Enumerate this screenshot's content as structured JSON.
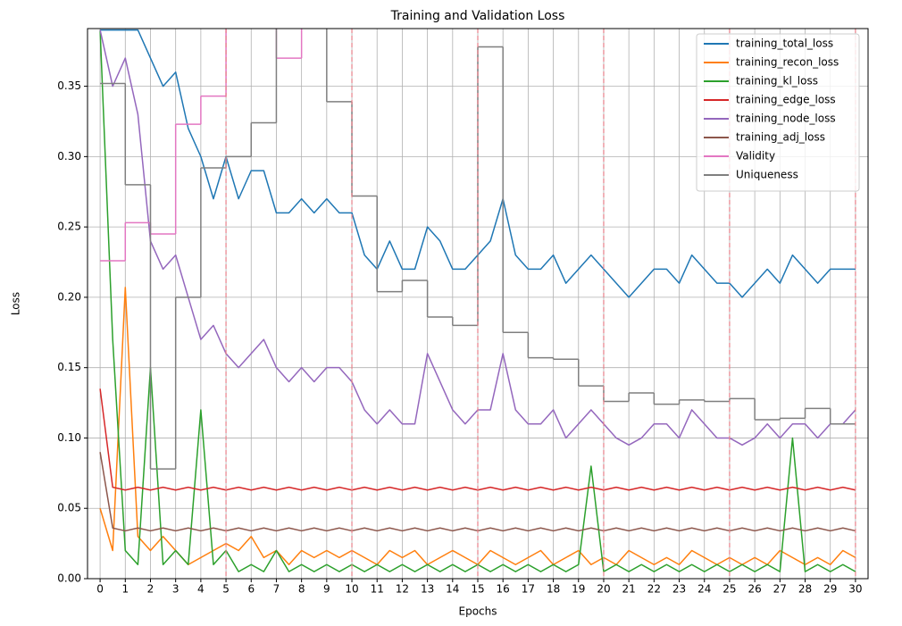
{
  "chart_data": {
    "type": "line",
    "title": "Training and Validation Loss",
    "x_label": "Epochs",
    "y_label": "Loss",
    "xlim": [
      -0.5,
      30.5
    ],
    "ylim": [
      0,
      0.391
    ],
    "xticks": [
      0,
      1,
      2,
      3,
      4,
      5,
      6,
      7,
      8,
      9,
      10,
      11,
      12,
      13,
      14,
      15,
      16,
      17,
      18,
      19,
      20,
      21,
      22,
      23,
      24,
      25,
      26,
      27,
      28,
      29,
      30
    ],
    "yticks": [
      {
        "value": 0,
        "label": "0.00"
      },
      0.05,
      {
        "value": 0.1,
        "label": "0.10"
      },
      0.15,
      {
        "value": 0.2,
        "label": "0.20"
      },
      0.25,
      {
        "value": 0.3,
        "label": "0.30"
      },
      0.35
    ],
    "grid": true,
    "legend": "upper right",
    "vlines": [
      5,
      10,
      15,
      20,
      25,
      30
    ],
    "vline_color": "#e8808a",
    "x": [
      0,
      0.5,
      1,
      1.5,
      2,
      2.5,
      3,
      3.5,
      4,
      4.5,
      5,
      5.5,
      6,
      6.5,
      7,
      7.5,
      8,
      8.5,
      9,
      9.5,
      10,
      10.5,
      11,
      11.5,
      12,
      12.5,
      13,
      13.5,
      14,
      14.5,
      15,
      15.5,
      16,
      16.5,
      17,
      17.5,
      18,
      18.5,
      19,
      19.5,
      20,
      20.5,
      21,
      21.5,
      22,
      22.5,
      23,
      23.5,
      24,
      24.5,
      25,
      25.5,
      26,
      26.5,
      27,
      27.5,
      28,
      28.5,
      29,
      29.5,
      30
    ],
    "series": [
      {
        "name": "training_total_loss",
        "color": "#1f77b4",
        "values": [
          0.39,
          0.39,
          0.39,
          0.39,
          0.37,
          0.35,
          0.36,
          0.32,
          0.3,
          0.27,
          0.3,
          0.27,
          0.29,
          0.29,
          0.26,
          0.26,
          0.27,
          0.26,
          0.27,
          0.26,
          0.26,
          0.23,
          0.22,
          0.24,
          0.22,
          0.22,
          0.25,
          0.24,
          0.22,
          0.22,
          0.23,
          0.24,
          0.27,
          0.23,
          0.22,
          0.22,
          0.23,
          0.21,
          0.22,
          0.23,
          0.22,
          0.21,
          0.2,
          0.21,
          0.22,
          0.22,
          0.21,
          0.23,
          0.22,
          0.21,
          0.21,
          0.2,
          0.21,
          0.22,
          0.21,
          0.23,
          0.22,
          0.21,
          0.22,
          0.22,
          0.22
        ]
      },
      {
        "name": "training_recon_loss",
        "color": "#ff7f0e",
        "values": [
          0.05,
          0.02,
          0.207,
          0.03,
          0.02,
          0.03,
          0.02,
          0.01,
          0.015,
          0.02,
          0.025,
          0.02,
          0.03,
          0.015,
          0.02,
          0.01,
          0.02,
          0.015,
          0.02,
          0.015,
          0.02,
          0.015,
          0.01,
          0.02,
          0.015,
          0.02,
          0.01,
          0.015,
          0.02,
          0.015,
          0.01,
          0.02,
          0.015,
          0.01,
          0.015,
          0.02,
          0.01,
          0.015,
          0.02,
          0.01,
          0.015,
          0.01,
          0.02,
          0.015,
          0.01,
          0.015,
          0.01,
          0.02,
          0.015,
          0.01,
          0.015,
          0.01,
          0.015,
          0.01,
          0.02,
          0.015,
          0.01,
          0.015,
          0.01,
          0.02,
          0.015
        ]
      },
      {
        "name": "training_kl_loss",
        "color": "#2ca02c",
        "values": [
          0.39,
          0.17,
          0.02,
          0.01,
          0.15,
          0.01,
          0.02,
          0.01,
          0.12,
          0.01,
          0.02,
          0.005,
          0.01,
          0.005,
          0.02,
          0.005,
          0.01,
          0.005,
          0.01,
          0.005,
          0.01,
          0.005,
          0.01,
          0.005,
          0.01,
          0.005,
          0.01,
          0.005,
          0.01,
          0.005,
          0.01,
          0.005,
          0.01,
          0.005,
          0.01,
          0.005,
          0.01,
          0.005,
          0.01,
          0.08,
          0.005,
          0.01,
          0.005,
          0.01,
          0.005,
          0.01,
          0.005,
          0.01,
          0.005,
          0.01,
          0.005,
          0.01,
          0.005,
          0.01,
          0.005,
          0.1,
          0.005,
          0.01,
          0.005,
          0.01,
          0.005
        ]
      },
      {
        "name": "training_edge_loss",
        "color": "#d62728",
        "values": [
          0.135,
          0.065,
          0.063,
          0.065,
          0.063,
          0.065,
          0.063,
          0.065,
          0.063,
          0.065,
          0.063,
          0.065,
          0.063,
          0.065,
          0.063,
          0.065,
          0.063,
          0.065,
          0.063,
          0.065,
          0.063,
          0.065,
          0.063,
          0.065,
          0.063,
          0.065,
          0.063,
          0.065,
          0.063,
          0.065,
          0.063,
          0.065,
          0.063,
          0.065,
          0.063,
          0.065,
          0.063,
          0.065,
          0.063,
          0.065,
          0.063,
          0.065,
          0.063,
          0.065,
          0.063,
          0.065,
          0.063,
          0.065,
          0.063,
          0.065,
          0.063,
          0.065,
          0.063,
          0.065,
          0.063,
          0.065,
          0.063,
          0.065,
          0.063,
          0.065,
          0.063
        ]
      },
      {
        "name": "training_node_loss",
        "color": "#9467bd",
        "values": [
          0.39,
          0.35,
          0.37,
          0.33,
          0.24,
          0.22,
          0.23,
          0.2,
          0.17,
          0.18,
          0.16,
          0.15,
          0.16,
          0.17,
          0.15,
          0.14,
          0.15,
          0.14,
          0.15,
          0.15,
          0.14,
          0.12,
          0.11,
          0.12,
          0.11,
          0.11,
          0.16,
          0.14,
          0.12,
          0.11,
          0.12,
          0.12,
          0.16,
          0.12,
          0.11,
          0.11,
          0.12,
          0.1,
          0.11,
          0.12,
          0.11,
          0.1,
          0.095,
          0.1,
          0.11,
          0.11,
          0.1,
          0.12,
          0.11,
          0.1,
          0.1,
          0.095,
          0.1,
          0.11,
          0.1,
          0.11,
          0.11,
          0.1,
          0.11,
          0.11,
          0.12
        ]
      },
      {
        "name": "training_adj_loss",
        "color": "#8c564b",
        "values": [
          0.09,
          0.036,
          0.034,
          0.036,
          0.034,
          0.036,
          0.034,
          0.036,
          0.034,
          0.036,
          0.034,
          0.036,
          0.034,
          0.036,
          0.034,
          0.036,
          0.034,
          0.036,
          0.034,
          0.036,
          0.034,
          0.036,
          0.034,
          0.036,
          0.034,
          0.036,
          0.034,
          0.036,
          0.034,
          0.036,
          0.034,
          0.036,
          0.034,
          0.036,
          0.034,
          0.036,
          0.034,
          0.036,
          0.034,
          0.036,
          0.034,
          0.036,
          0.034,
          0.036,
          0.034,
          0.036,
          0.034,
          0.036,
          0.034,
          0.036,
          0.034,
          0.036,
          0.034,
          0.036,
          0.034,
          0.036,
          0.034,
          0.036,
          0.034,
          0.036,
          0.034
        ]
      },
      {
        "name": "Validity",
        "color": "#e377c2",
        "drawstyle": "steps-post",
        "x": [
          0,
          1,
          2,
          3,
          4,
          5,
          6,
          7,
          8,
          9,
          10,
          11,
          12,
          13,
          14,
          15,
          16,
          17,
          18,
          19,
          20,
          21,
          22,
          23,
          24,
          25,
          26,
          27,
          28,
          29,
          30
        ],
        "values": [
          0.226,
          0.253,
          0.245,
          0.323,
          0.343,
          0.4,
          0.4,
          0.37,
          0.4,
          0.4,
          0.4,
          0.4,
          0.4,
          0.4,
          0.4,
          0.4,
          0.4,
          0.4,
          0.4,
          0.4,
          0.4,
          0.4,
          0.4,
          0.4,
          0.4,
          0.4,
          0.4,
          0.4,
          0.4,
          0.4,
          0.4
        ]
      },
      {
        "name": "Uniqueness",
        "color": "#7f7f7f",
        "drawstyle": "steps-post",
        "x": [
          0,
          1,
          2,
          3,
          4,
          5,
          6,
          7,
          8,
          9,
          10,
          11,
          12,
          13,
          14,
          15,
          16,
          17,
          18,
          19,
          20,
          21,
          22,
          23,
          24,
          25,
          26,
          27,
          28,
          29,
          30
        ],
        "values": [
          0.352,
          0.28,
          0.078,
          0.2,
          0.292,
          0.3,
          0.324,
          0.4,
          0.4,
          0.339,
          0.272,
          0.204,
          0.212,
          0.186,
          0.18,
          0.378,
          0.175,
          0.157,
          0.156,
          0.137,
          0.126,
          0.132,
          0.124,
          0.127,
          0.126,
          0.128,
          0.113,
          0.114,
          0.121,
          0.11,
          0.11
        ]
      }
    ]
  }
}
